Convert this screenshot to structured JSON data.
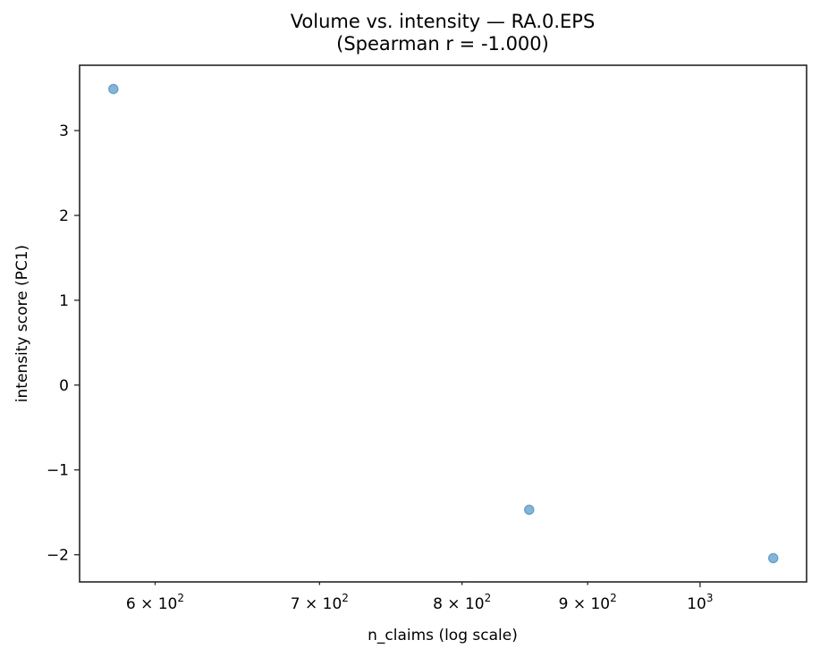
{
  "chart_data": {
    "type": "scatter",
    "title": "Volume vs. intensity — RA.0.EPS",
    "subtitle": "(Spearman r = -1.000)",
    "xlabel": "n_claims (log scale)",
    "ylabel": "intensity score (PC1)",
    "xscale": "log",
    "xlim": [
      559,
      1105
    ],
    "ylim": [
      -2.32,
      3.77
    ],
    "grid": false,
    "legend": null,
    "x_ticks": [
      {
        "value": 600,
        "label_base": "6 × 10",
        "label_exp": "2",
        "major": false
      },
      {
        "value": 700,
        "label_base": "7 × 10",
        "label_exp": "2",
        "major": false
      },
      {
        "value": 800,
        "label_base": "8 × 10",
        "label_exp": "2",
        "major": false
      },
      {
        "value": 900,
        "label_base": "9 × 10",
        "label_exp": "2",
        "major": false
      },
      {
        "value": 1000,
        "label_base": "10",
        "label_exp": "3",
        "major": true
      }
    ],
    "y_ticks": [
      {
        "value": 3,
        "label": "3"
      },
      {
        "value": 2,
        "label": "2"
      },
      {
        "value": 1,
        "label": "1"
      },
      {
        "value": 0,
        "label": "0"
      },
      {
        "value": -1,
        "label": "−1"
      },
      {
        "value": -2,
        "label": "−2"
      }
    ],
    "series": [
      {
        "name": "RA.0.EPS",
        "color": "#1f77b4",
        "alpha": 0.55,
        "points": [
          {
            "x": 577,
            "y": 3.49
          },
          {
            "x": 852,
            "y": -1.47
          },
          {
            "x": 1071,
            "y": -2.04
          }
        ]
      }
    ]
  }
}
